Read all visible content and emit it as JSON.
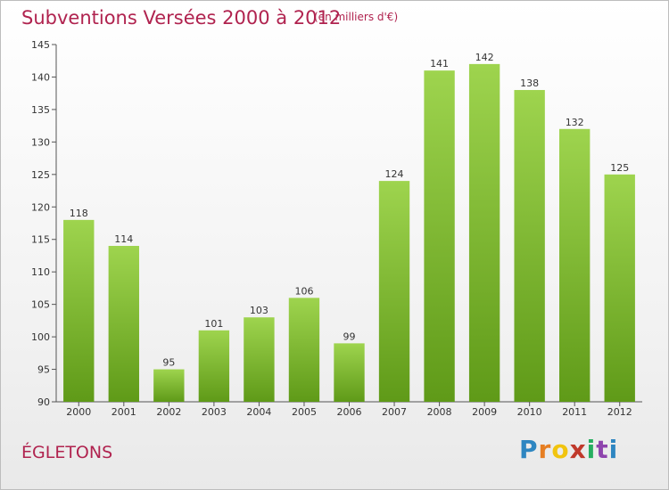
{
  "header": {
    "title": "Subventions Versées 2000 à 2012",
    "subtitle": "(en milliers d'€)"
  },
  "footer": {
    "city": "ÉGLETONS",
    "logo_letters": [
      "P",
      "r",
      "o",
      "x",
      "i",
      "t",
      "i"
    ],
    "logo_colors": [
      "#2e86c1",
      "#e67e22",
      "#f1c40f",
      "#c0392b",
      "#27ae60",
      "#8e44ad",
      "#2e86c1"
    ]
  },
  "colors": {
    "bar_top": "#9ed44e",
    "bar_bottom": "#5f9a18",
    "accent": "#b0234f"
  },
  "chart_data": {
    "type": "bar",
    "title": "Subventions Versées 2000 à 2012",
    "subtitle": "(en milliers d'€)",
    "xlabel": "",
    "ylabel": "",
    "categories": [
      "2000",
      "2001",
      "2002",
      "2003",
      "2004",
      "2005",
      "2006",
      "2007",
      "2008",
      "2009",
      "2010",
      "2011",
      "2012"
    ],
    "values": [
      118,
      114,
      95,
      101,
      103,
      106,
      99,
      124,
      141,
      142,
      138,
      132,
      125
    ],
    "ylim": [
      90,
      145
    ],
    "yticks": [
      90,
      95,
      100,
      105,
      110,
      115,
      120,
      125,
      130,
      135,
      140,
      145
    ],
    "grid": false,
    "legend": "none"
  }
}
